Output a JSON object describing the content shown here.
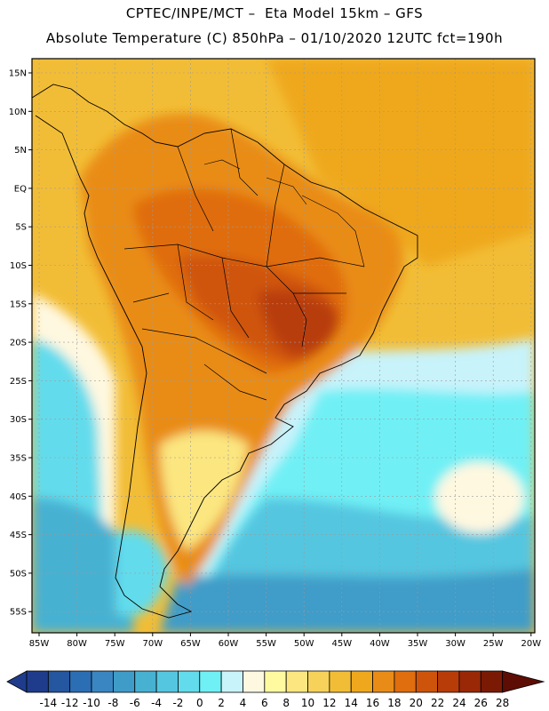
{
  "header": {
    "line1": "CPTEC/INPE/MCT –  Eta Model 15km – GFS",
    "line2": "Absolute Temperature (C) 850hPa – 01/10/2020 12UTC fct=190h"
  },
  "axes": {
    "lat_labels": [
      "15N",
      "10N",
      "5N",
      "EQ",
      "5S",
      "10S",
      "15S",
      "20S",
      "25S",
      "30S",
      "35S",
      "40S",
      "45S",
      "50S",
      "55S"
    ],
    "lon_labels": [
      "85W",
      "80W",
      "75W",
      "70W",
      "65W",
      "60W",
      "55W",
      "50W",
      "45W",
      "40W",
      "35W",
      "30W",
      "25W",
      "20W"
    ]
  },
  "colorbar": {
    "labels": [
      "-14",
      "-12",
      "-10",
      "-8",
      "-6",
      "-4",
      "-2",
      "0",
      "2",
      "4",
      "6",
      "8",
      "10",
      "12",
      "14",
      "16",
      "18",
      "20",
      "22",
      "24",
      "26",
      "28"
    ],
    "colors": [
      "#1f3c8c",
      "#2556a0",
      "#2c6eb3",
      "#3a86c2",
      "#3f9cc8",
      "#47b1d2",
      "#55c6e0",
      "#62dcec",
      "#6ff0f5",
      "#c8f3fb",
      "#fff8e0",
      "#fffaa0",
      "#fbe680",
      "#f7d25a",
      "#f2bd36",
      "#efa81d",
      "#e98c17",
      "#e06d0e",
      "#cf540b",
      "#b83c08",
      "#9a2806",
      "#7a1a05",
      "#5e0d04"
    ]
  },
  "map": {
    "land_outline_color": "#000000",
    "field_colors": {
      "ocean_north": "#f2bd36",
      "warm_land": "#e98c17",
      "hot_core": "#cf540b",
      "hottest": "#b83c08",
      "cool_ocean": "#62dcec",
      "cold_south": "#3f9cc8",
      "pale": "#fff8e0"
    }
  }
}
